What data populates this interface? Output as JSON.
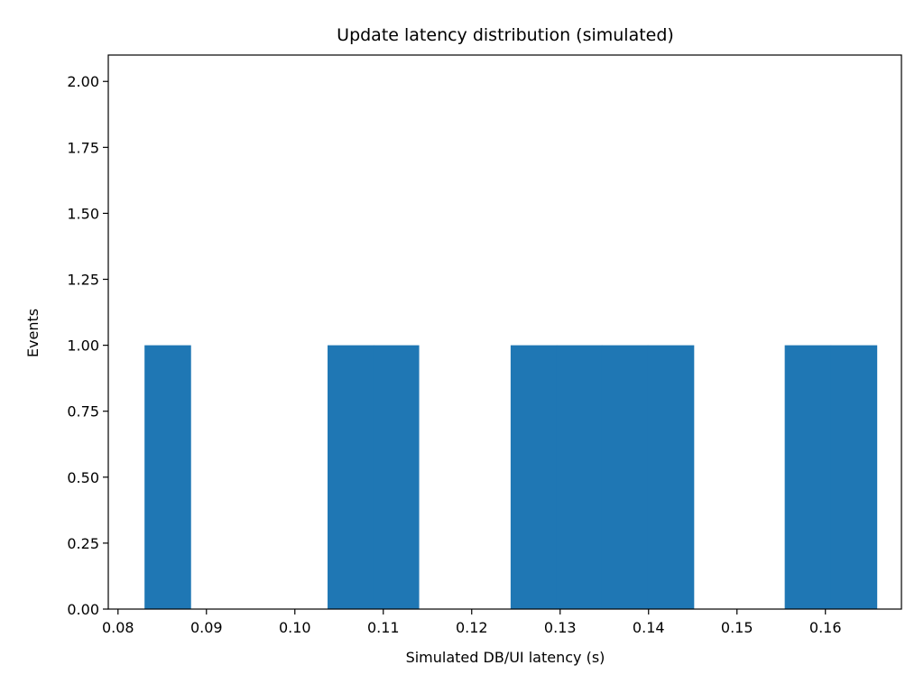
{
  "chart_data": {
    "type": "bar",
    "title": "Update latency distribution (simulated)",
    "xlabel": "Simulated DB/UI latency (s)",
    "ylabel": "Events",
    "xlim": [
      0.0789,
      0.1686
    ],
    "ylim": [
      0,
      2.1
    ],
    "grid": false,
    "legend": "none",
    "bar_color": "#1f77b4",
    "x_ticks": [
      0.08,
      0.09,
      0.1,
      0.11,
      0.12,
      0.13,
      0.14,
      0.15,
      0.16
    ],
    "x_tick_labels": [
      "0.08",
      "0.09",
      "0.10",
      "0.11",
      "0.12",
      "0.13",
      "0.14",
      "0.15",
      "0.16"
    ],
    "y_ticks": [
      0,
      0.25,
      0.5,
      0.75,
      1.0,
      1.25,
      1.5,
      1.75,
      2.0
    ],
    "y_tick_labels": [
      "0.00",
      "0.25",
      "0.50",
      "0.75",
      "1.00",
      "1.25",
      "1.50",
      "1.75",
      "2.00"
    ],
    "bins": [
      {
        "x0": 0.083,
        "x1": 0.0882,
        "value": 1
      },
      {
        "x0": 0.0882,
        "x1": 0.0933,
        "value": 0
      },
      {
        "x0": 0.0933,
        "x1": 0.0985,
        "value": 0
      },
      {
        "x0": 0.0985,
        "x1": 0.1037,
        "value": 0
      },
      {
        "x0": 0.1037,
        "x1": 0.1089,
        "value": 1
      },
      {
        "x0": 0.1089,
        "x1": 0.114,
        "value": 1
      },
      {
        "x0": 0.114,
        "x1": 0.1192,
        "value": 0
      },
      {
        "x0": 0.1192,
        "x1": 0.1244,
        "value": 0
      },
      {
        "x0": 0.1244,
        "x1": 0.1296,
        "value": 1
      },
      {
        "x0": 0.1296,
        "x1": 0.1347,
        "value": 1
      },
      {
        "x0": 0.1347,
        "x1": 0.1399,
        "value": 1
      },
      {
        "x0": 0.1399,
        "x1": 0.1451,
        "value": 1
      },
      {
        "x0": 0.1451,
        "x1": 0.1503,
        "value": 0
      },
      {
        "x0": 0.1503,
        "x1": 0.1554,
        "value": 0
      },
      {
        "x0": 0.1554,
        "x1": 0.1606,
        "value": 1
      },
      {
        "x0": 0.1606,
        "x1": 0.1658,
        "value": 1
      }
    ]
  }
}
